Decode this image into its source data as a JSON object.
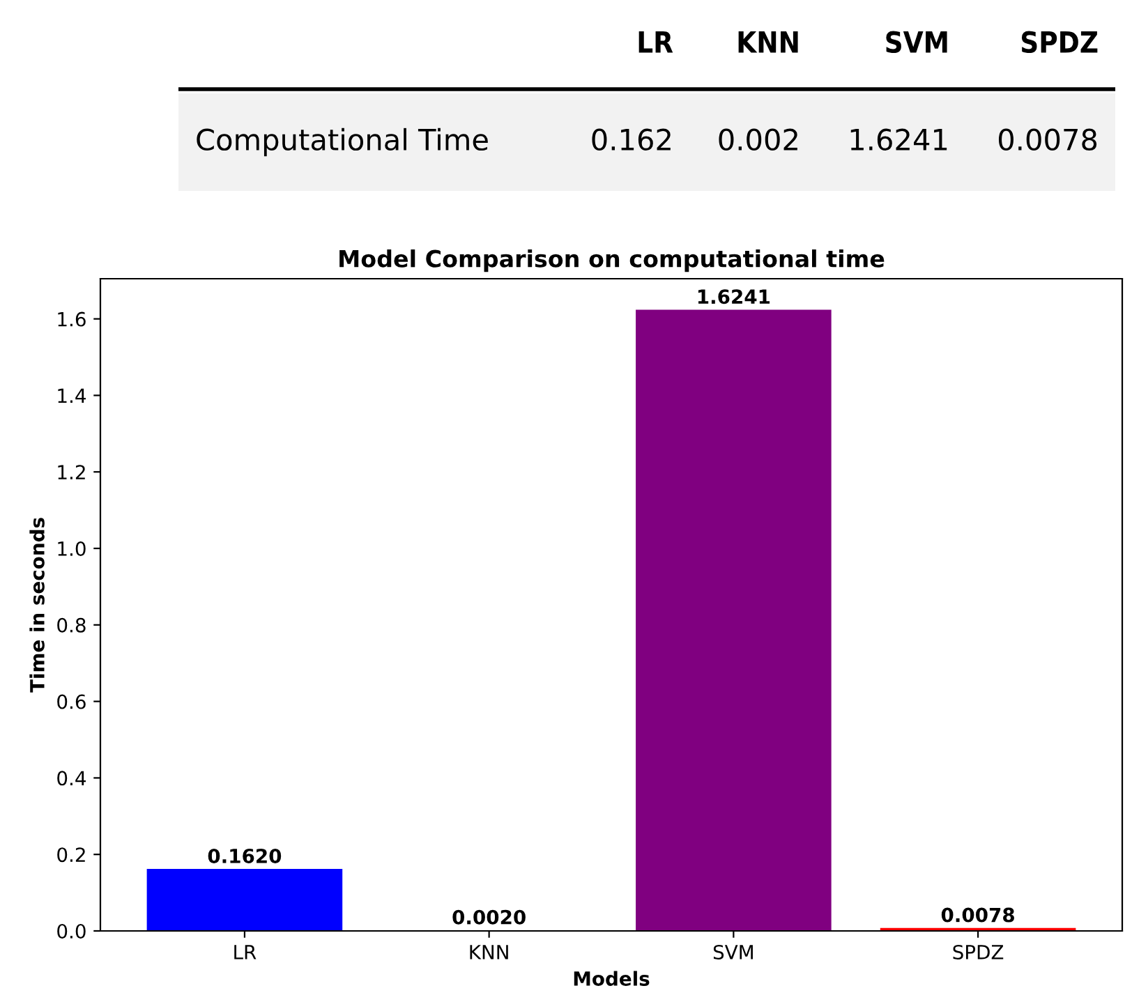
{
  "chart_data": [
    {
      "type": "other",
      "categories": [
        "LR",
        "KNN",
        "SVM",
        "SPDZ"
      ],
      "annotations": [
        "Computational Time"
      ],
      "values": [
        0.162,
        0.002,
        1.6241,
        0.0078
      ],
      "data_labels": true
    },
    {
      "type": "bar",
      "title": "Model Comparison on computational time",
      "xlabel": "Models",
      "ylabel": "Time in seconds",
      "categories": [
        "LR",
        "KNN",
        "SVM",
        "SPDZ"
      ],
      "values": [
        0.162,
        0.002,
        1.6241,
        0.0078
      ],
      "colors": [
        "#0000ff",
        "#008000",
        "#800080",
        "#ff0000"
      ],
      "value_labels": [
        "0.1620",
        "0.0020",
        "1.6241",
        "0.0078"
      ],
      "ylim": [
        0,
        1.705
      ],
      "yticks": [
        {
          "value": 0,
          "label": "0.0"
        },
        {
          "value": 0.2,
          "label": "0.2"
        },
        {
          "value": 0.4,
          "label": "0.4"
        },
        {
          "value": 0.6,
          "label": "0.6"
        },
        {
          "value": 0.8,
          "label": "0.8"
        },
        {
          "value": 1.0,
          "label": "1.0"
        },
        {
          "value": 1.2,
          "label": "1.2"
        },
        {
          "value": 1.4,
          "label": "1.4"
        },
        {
          "value": 1.6,
          "label": "1.6"
        }
      ],
      "grid": false
    }
  ]
}
